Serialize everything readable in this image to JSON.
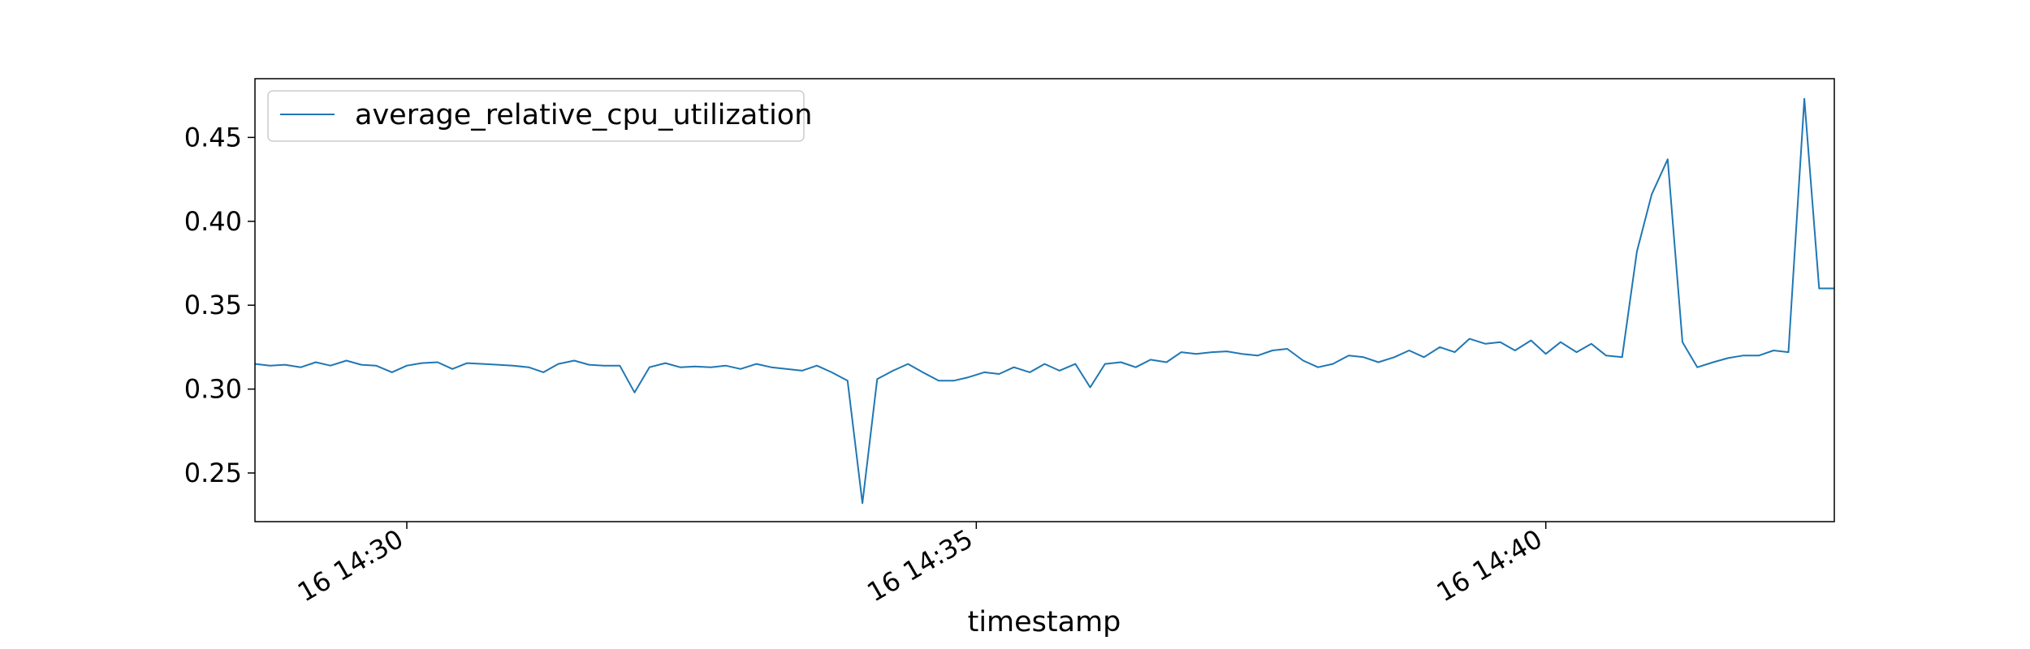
{
  "chart_data": {
    "type": "line",
    "title": "",
    "xlabel": "timestamp",
    "ylabel": "",
    "x_ticks": [
      "16 14:30",
      "16 14:35",
      "16 14:40"
    ],
    "x_tick_minutes": [
      30,
      35,
      40
    ],
    "x_range_minutes": [
      28.667,
      42.533
    ],
    "ylim": [
      0.221,
      0.485
    ],
    "y_ticks": [
      0.25,
      0.3,
      0.35,
      0.4,
      0.45
    ],
    "y_tick_labels": [
      "0.25",
      "0.30",
      "0.35",
      "0.40",
      "0.45"
    ],
    "grid": false,
    "legend_position": "top-left",
    "colors": {
      "line": "#1f77b4"
    },
    "series": [
      {
        "name": "average_relative_cpu_utilization",
        "x_minutes": [
          28.67,
          28.8,
          28.93,
          29.07,
          29.2,
          29.33,
          29.47,
          29.6,
          29.73,
          29.87,
          30.0,
          30.13,
          30.27,
          30.4,
          30.53,
          30.67,
          30.8,
          30.93,
          31.07,
          31.2,
          31.33,
          31.47,
          31.6,
          31.73,
          31.87,
          32.0,
          32.13,
          32.27,
          32.4,
          32.53,
          32.67,
          32.8,
          32.93,
          33.07,
          33.2,
          33.33,
          33.47,
          33.6,
          33.73,
          33.87,
          34.0,
          34.13,
          34.27,
          34.4,
          34.53,
          34.67,
          34.8,
          34.93,
          35.07,
          35.2,
          35.33,
          35.47,
          35.6,
          35.73,
          35.87,
          36.0,
          36.13,
          36.27,
          36.4,
          36.53,
          36.67,
          36.8,
          36.93,
          37.07,
          37.2,
          37.33,
          37.47,
          37.6,
          37.73,
          37.87,
          38.0,
          38.13,
          38.27,
          38.4,
          38.53,
          38.67,
          38.8,
          38.93,
          39.07,
          39.2,
          39.33,
          39.47,
          39.6,
          39.73,
          39.87,
          40.0,
          40.13,
          40.27,
          40.4,
          40.53,
          40.67,
          40.8,
          40.93,
          41.07,
          41.2,
          41.33,
          41.47,
          41.6,
          41.73,
          41.87,
          42.0,
          42.13,
          42.27,
          42.4,
          42.53
        ],
        "values": [
          0.315,
          0.314,
          0.3145,
          0.313,
          0.316,
          0.314,
          0.317,
          0.3145,
          0.314,
          0.31,
          0.314,
          0.3155,
          0.316,
          0.312,
          0.3155,
          0.315,
          0.3145,
          0.314,
          0.313,
          0.31,
          0.315,
          0.317,
          0.3145,
          0.314,
          0.314,
          0.298,
          0.313,
          0.3155,
          0.313,
          0.3135,
          0.313,
          0.314,
          0.312,
          0.315,
          0.313,
          0.312,
          0.311,
          0.314,
          0.31,
          0.305,
          0.232,
          0.306,
          0.311,
          0.315,
          0.31,
          0.305,
          0.305,
          0.307,
          0.31,
          0.309,
          0.313,
          0.31,
          0.315,
          0.311,
          0.315,
          0.301,
          0.315,
          0.316,
          0.313,
          0.3175,
          0.316,
          0.322,
          0.321,
          0.322,
          0.3225,
          0.321,
          0.32,
          0.323,
          0.324,
          0.317,
          0.313,
          0.315,
          0.32,
          0.319,
          0.316,
          0.319,
          0.323,
          0.319,
          0.325,
          0.322,
          0.33,
          0.327,
          0.328,
          0.323,
          0.329,
          0.321,
          0.328,
          0.322,
          0.327,
          0.32,
          0.319,
          0.382,
          0.416,
          0.437,
          0.328,
          0.313,
          0.316,
          0.3185,
          0.32,
          0.32,
          0.323,
          0.322,
          0.473,
          0.36,
          0.36
        ]
      }
    ]
  }
}
